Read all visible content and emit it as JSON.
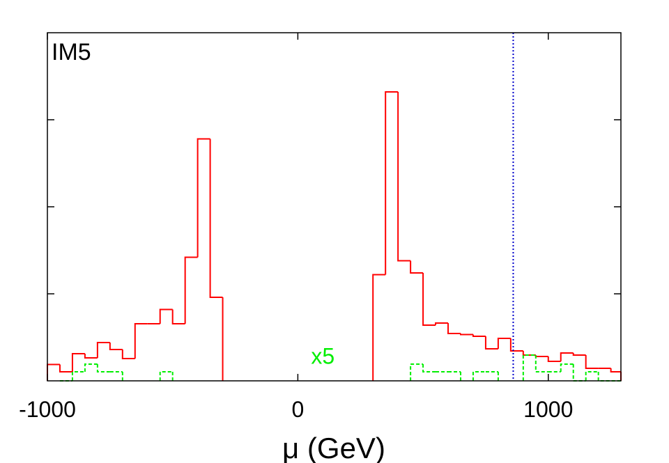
{
  "chart_data": {
    "type": "histogram",
    "panel_label": "IM5",
    "xlabel": "μ (GeV)",
    "ylabel": "",
    "xlim": [
      -1000,
      1290
    ],
    "ylim": [
      0,
      100
    ],
    "x_ticks": [
      -1000,
      0,
      1000
    ],
    "x_tick_labels": [
      "-1000",
      "0",
      "1000"
    ],
    "y_ticks": [
      25,
      50,
      75
    ],
    "grid": false,
    "series": [
      {
        "color": "#ff0000",
        "style": "solid",
        "bins": [
          {
            "x0": -1000,
            "x1": -950,
            "y": 4.7
          },
          {
            "x0": -950,
            "x1": -900,
            "y": 2.6
          },
          {
            "x0": -900,
            "x1": -850,
            "y": 7.8
          },
          {
            "x0": -850,
            "x1": -800,
            "y": 6.6
          },
          {
            "x0": -800,
            "x1": -750,
            "y": 11.0
          },
          {
            "x0": -750,
            "x1": -700,
            "y": 9.0
          },
          {
            "x0": -700,
            "x1": -650,
            "y": 6.4
          },
          {
            "x0": -650,
            "x1": -600,
            "y": 16.4
          },
          {
            "x0": -600,
            "x1": -550,
            "y": 16.4
          },
          {
            "x0": -550,
            "x1": -500,
            "y": 20.5
          },
          {
            "x0": -500,
            "x1": -450,
            "y": 16.4
          },
          {
            "x0": -450,
            "x1": -400,
            "y": 35.5
          },
          {
            "x0": -400,
            "x1": -350,
            "y": 69.5
          },
          {
            "x0": -350,
            "x1": -300,
            "y": 24.0
          },
          {
            "x0": 300,
            "x1": 350,
            "y": 30.5
          },
          {
            "x0": 350,
            "x1": 400,
            "y": 83.0
          },
          {
            "x0": 400,
            "x1": 450,
            "y": 34.5
          },
          {
            "x0": 450,
            "x1": 500,
            "y": 31.0
          },
          {
            "x0": 500,
            "x1": 550,
            "y": 16.0
          },
          {
            "x0": 550,
            "x1": 600,
            "y": 16.6
          },
          {
            "x0": 600,
            "x1": 650,
            "y": 13.6
          },
          {
            "x0": 650,
            "x1": 700,
            "y": 13.3
          },
          {
            "x0": 700,
            "x1": 750,
            "y": 12.8
          },
          {
            "x0": 750,
            "x1": 800,
            "y": 9.2
          },
          {
            "x0": 800,
            "x1": 850,
            "y": 12.2
          },
          {
            "x0": 850,
            "x1": 900,
            "y": 8.6
          },
          {
            "x0": 900,
            "x1": 950,
            "y": 7.4
          },
          {
            "x0": 950,
            "x1": 1000,
            "y": 7.0
          },
          {
            "x0": 1000,
            "x1": 1050,
            "y": 5.6
          },
          {
            "x0": 1050,
            "x1": 1100,
            "y": 8.0
          },
          {
            "x0": 1100,
            "x1": 1150,
            "y": 7.4
          },
          {
            "x0": 1150,
            "x1": 1200,
            "y": 3.6
          },
          {
            "x0": 1200,
            "x1": 1250,
            "y": 3.6
          },
          {
            "x0": 1250,
            "x1": 1290,
            "y": 2.6
          }
        ]
      },
      {
        "color": "#00ee00",
        "style": "dashed",
        "label": "x5",
        "bins": [
          {
            "x0": -950,
            "x1": -900,
            "y": 0.0
          },
          {
            "x0": -900,
            "x1": -850,
            "y": 2.6
          },
          {
            "x0": -850,
            "x1": -800,
            "y": 4.8
          },
          {
            "x0": -800,
            "x1": -750,
            "y": 2.6
          },
          {
            "x0": -750,
            "x1": -700,
            "y": 2.6
          },
          {
            "x0": -550,
            "x1": -500,
            "y": 2.6
          },
          {
            "x0": 450,
            "x1": 500,
            "y": 4.8
          },
          {
            "x0": 500,
            "x1": 550,
            "y": 2.6
          },
          {
            "x0": 550,
            "x1": 600,
            "y": 2.6
          },
          {
            "x0": 600,
            "x1": 650,
            "y": 2.6
          },
          {
            "x0": 700,
            "x1": 750,
            "y": 2.6
          },
          {
            "x0": 750,
            "x1": 800,
            "y": 2.6
          },
          {
            "x0": 900,
            "x1": 950,
            "y": 7.4
          },
          {
            "x0": 950,
            "x1": 1000,
            "y": 2.6
          },
          {
            "x0": 1000,
            "x1": 1050,
            "y": 2.6
          },
          {
            "x0": 1050,
            "x1": 1100,
            "y": 4.8
          },
          {
            "x0": 1100,
            "x1": 1150,
            "y": 0.0
          },
          {
            "x0": 1150,
            "x1": 1200,
            "y": 2.6
          },
          {
            "x0": 1200,
            "x1": 1290,
            "y": 0.0
          }
        ]
      }
    ],
    "vertical_line": {
      "x": 860,
      "color": "#0000cc",
      "style": "dotted"
    },
    "annotations": [
      {
        "text": "x5",
        "x": 100,
        "y": 4.5,
        "color": "#00ee00"
      }
    ]
  }
}
